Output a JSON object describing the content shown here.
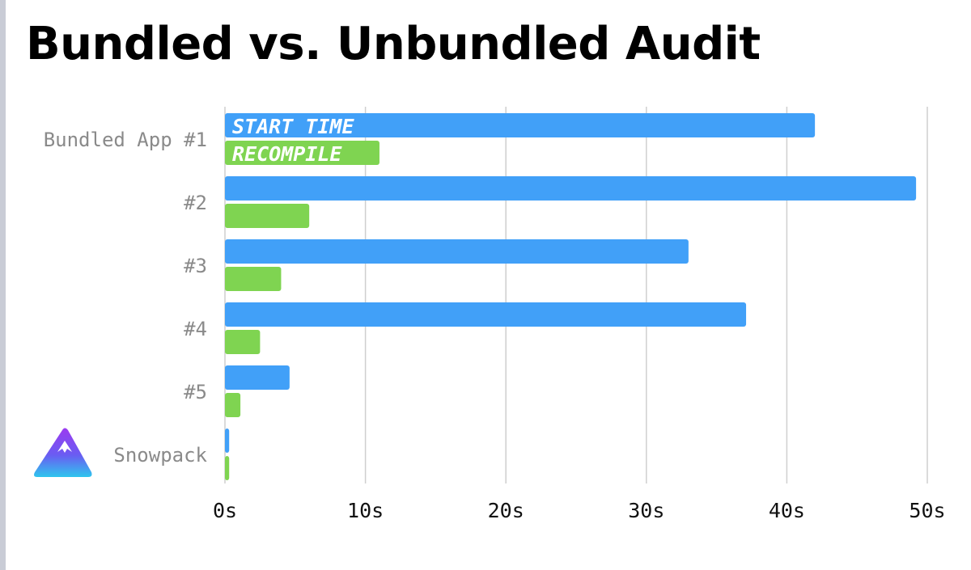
{
  "title": "Bundled vs. Unbundled Audit",
  "chart_data": {
    "type": "bar",
    "orientation": "horizontal",
    "categories": [
      "Bundled App #1",
      "#2",
      "#3",
      "#4",
      "#5",
      "Snowpack"
    ],
    "series": [
      {
        "name": "START TIME",
        "color": "#41a0f8",
        "values": [
          42,
          49.2,
          33,
          37.1,
          4.6,
          0.3
        ]
      },
      {
        "name": "RECOMPILE",
        "color": "#7fd451",
        "values": [
          11,
          6,
          4,
          2.5,
          1.1,
          0.3
        ]
      }
    ],
    "xlim": [
      0,
      50
    ],
    "xticks": [
      0,
      10,
      20,
      30,
      40,
      50
    ],
    "xtick_labels": [
      "0s",
      "10s",
      "20s",
      "30s",
      "40s",
      "50s"
    ],
    "grid": "vertical",
    "legend_placement": "inside first bars",
    "logo": "snowpack-logo"
  }
}
